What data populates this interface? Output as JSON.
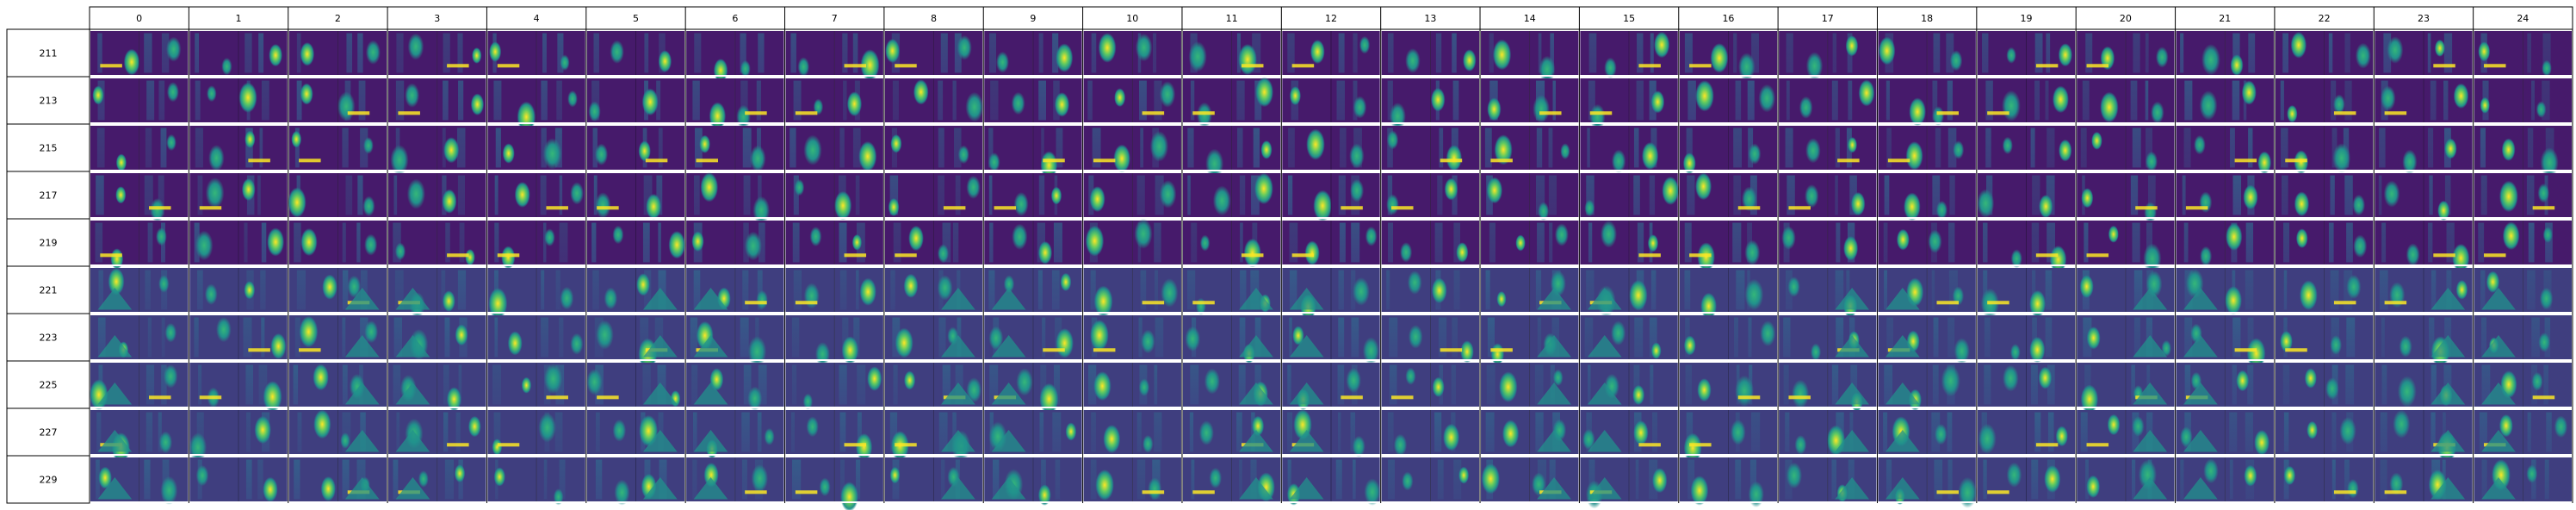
{
  "chart_data": {
    "type": "heatmap",
    "title": "",
    "xlabel": "",
    "ylabel": "",
    "columns": [
      "0",
      "1",
      "2",
      "3",
      "4",
      "5",
      "6",
      "7",
      "8",
      "9",
      "10",
      "11",
      "12",
      "13",
      "14",
      "15",
      "16",
      "17",
      "18",
      "19",
      "20",
      "21",
      "22",
      "23",
      "24"
    ],
    "rows": [
      "211",
      "213",
      "215",
      "217",
      "219",
      "221",
      "223",
      "225",
      "227",
      "229"
    ],
    "colormap": [
      "#440154",
      "#3b528b",
      "#21918c",
      "#5ec962",
      "#fde725"
    ],
    "grid": true,
    "row_groups": [
      {
        "rows": [
          "211",
          "213",
          "215",
          "217",
          "219"
        ],
        "background": "#461a6b"
      },
      {
        "rows": [
          "221",
          "223",
          "225",
          "227",
          "229"
        ],
        "background": "#3f3e7f"
      }
    ],
    "cell_description": "each cell shows a side-by-side pair of rendered heatmap thumbnails"
  }
}
